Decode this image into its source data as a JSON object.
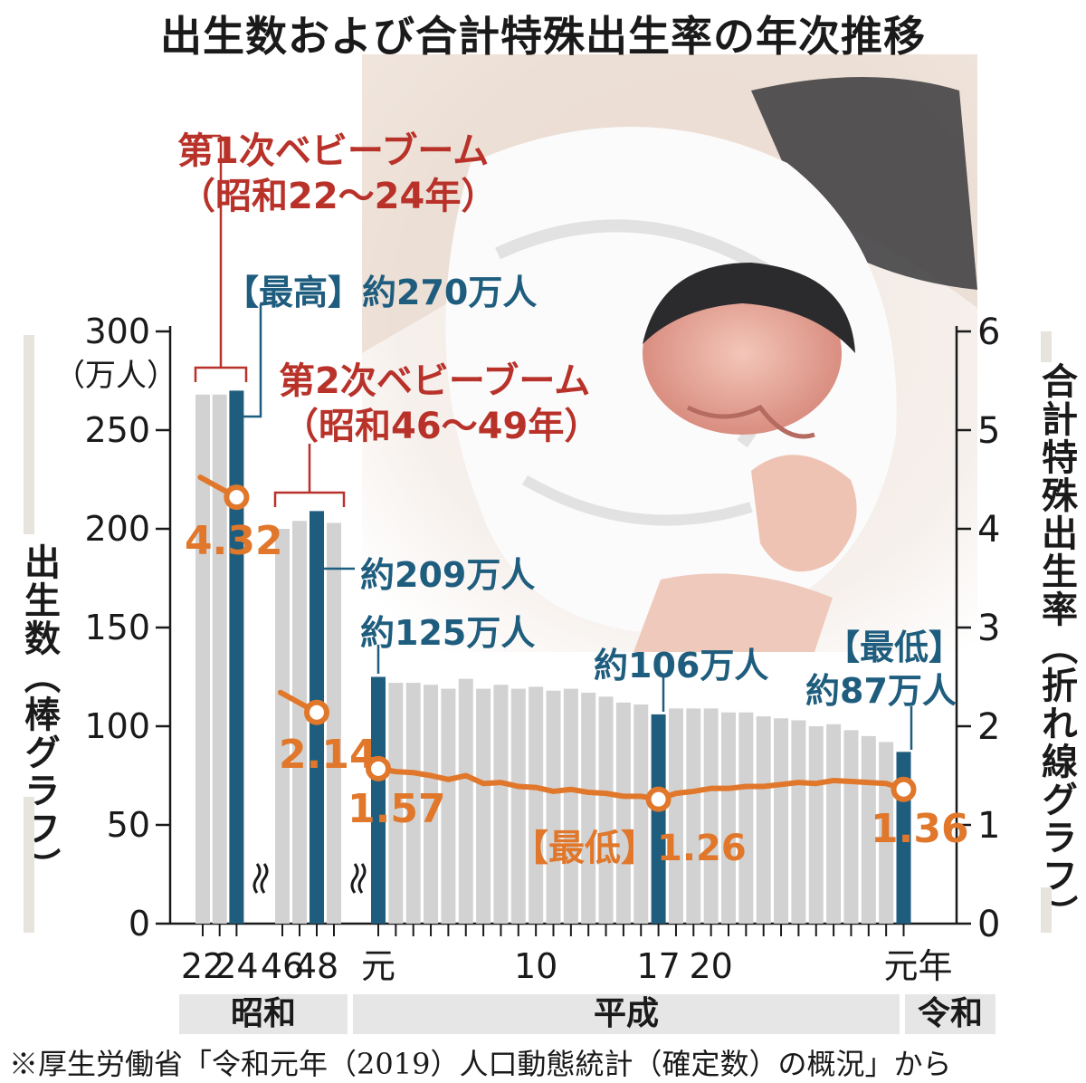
{
  "title": "出生数および合計特殊出生率の年次推移",
  "colors": {
    "bar": "#d2d2d2",
    "highlight": "#1f5d7e",
    "line": "#e0772b",
    "annotation": "#b8322a",
    "text": "#1a1a1a"
  },
  "left_axis": {
    "label": "出生数（棒グラフ）",
    "unit": "（万人）",
    "ticks": [
      "0",
      "50",
      "100",
      "150",
      "200",
      "250",
      "300"
    ]
  },
  "right_axis": {
    "label": "合計特殊出生率（折れ線グラフ）",
    "ticks": [
      "0",
      "1",
      "2",
      "3",
      "4",
      "5",
      "6"
    ]
  },
  "x_ticks": [
    "22",
    "24",
    "46",
    "48",
    "元",
    "10",
    "17",
    "20",
    "元年"
  ],
  "eras": [
    "昭和",
    "平成",
    "令和"
  ],
  "annotations": {
    "boom1": "第1次ベビーブーム",
    "boom1_years": "（昭和22〜24年）",
    "boom2": "第2次ベビーブーム",
    "boom2_years": "（昭和46〜49年）",
    "max_births": "【最高】約270万人",
    "births_s48": "約209万人",
    "births_h1": "約125万人",
    "births_h17": "約106万人",
    "min_births_tag": "【最低】",
    "min_births": "約87万人",
    "rate_s24": "4.32",
    "rate_s48": "2.14",
    "rate_h1": "1.57",
    "min_rate": "【最低】1.26",
    "rate_r1": "1.36"
  },
  "source": "※厚生労働省「令和元年（2019）人口動態統計（確定数）の概況」から",
  "chart_data": {
    "type": "bar",
    "title": "出生数および合計特殊出生率の年次推移",
    "groups": [
      {
        "era": "昭和",
        "years": [
          "昭和22",
          "昭和23",
          "昭和24"
        ],
        "births": [
          268,
          268,
          270
        ],
        "rate": [
          null,
          null,
          4.32
        ],
        "highlight": [
          false,
          false,
          true
        ]
      },
      {
        "era": "昭和",
        "years": [
          "昭和46",
          "昭和47",
          "昭和48",
          "昭和49"
        ],
        "births": [
          200,
          204,
          209,
          203
        ],
        "rate": [
          null,
          null,
          2.14,
          null
        ],
        "highlight": [
          false,
          false,
          true,
          false
        ]
      },
      {
        "era": "平成・令和",
        "years": [
          "平成元",
          "平成2",
          "平成3",
          "平成4",
          "平成5",
          "平成6",
          "平成7",
          "平成8",
          "平成9",
          "平成10",
          "平成11",
          "平成12",
          "平成13",
          "平成14",
          "平成15",
          "平成16",
          "平成17",
          "平成18",
          "平成19",
          "平成20",
          "平成21",
          "平成22",
          "平成23",
          "平成24",
          "平成25",
          "平成26",
          "平成27",
          "平成28",
          "平成29",
          "平成30",
          "令和元"
        ],
        "births": [
          125,
          122,
          122,
          121,
          119,
          124,
          119,
          121,
          119,
          120,
          118,
          119,
          117,
          115,
          112,
          111,
          106,
          109,
          109,
          109,
          107,
          107,
          105,
          104,
          103,
          100,
          101,
          98,
          95,
          92,
          87
        ],
        "rate": [
          1.57,
          1.54,
          1.53,
          1.5,
          1.46,
          1.5,
          1.42,
          1.43,
          1.39,
          1.38,
          1.34,
          1.36,
          1.33,
          1.32,
          1.29,
          1.29,
          1.26,
          1.32,
          1.34,
          1.37,
          1.37,
          1.39,
          1.39,
          1.41,
          1.43,
          1.42,
          1.45,
          1.44,
          1.43,
          1.42,
          1.36
        ],
        "highlight": [
          true,
          false,
          false,
          false,
          false,
          false,
          false,
          false,
          false,
          false,
          false,
          false,
          false,
          false,
          false,
          false,
          true,
          false,
          false,
          false,
          false,
          false,
          false,
          false,
          false,
          false,
          false,
          false,
          false,
          false,
          true
        ]
      }
    ],
    "ylabel": "出生数（棒グラフ）",
    "yunit": "万人",
    "ylim": [
      0,
      300
    ],
    "y2label": "合計特殊出生率（折れ線グラフ）",
    "y2lim": [
      0,
      6
    ]
  }
}
